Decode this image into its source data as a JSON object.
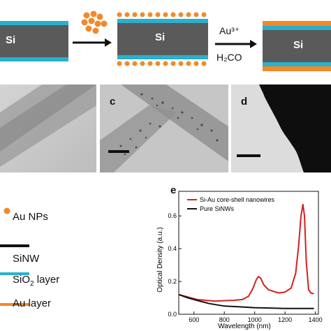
{
  "schematic": {
    "step1_label": "Si",
    "step2_label": "Si",
    "step3_label": "Si",
    "reagent_top": "Au³⁺",
    "reagent_bottom": "H₂CO",
    "colors": {
      "si": "#5a5a5a",
      "sio2": "#2ab0cf",
      "au": "#f08a2a",
      "np": "#f08a2a"
    }
  },
  "tem": {
    "panel_c_letter": "c",
    "panel_d_letter": "d"
  },
  "legend": {
    "au_nps": "Au NPs",
    "sinw": "SiNW",
    "sio2_prefix": "SiO",
    "sio2_sub": "2",
    "sio2_suffix": " layer",
    "au_layer": "Au layer"
  },
  "chart_data": {
    "type": "line",
    "panel_letter": "e",
    "xlabel": "Wavelength (nm)",
    "ylabel": "Optical Density (a.u.)",
    "xlim": [
      500,
      1420
    ],
    "ylim": [
      0,
      0.75
    ],
    "xticks": [
      600,
      800,
      1000,
      1200,
      1400
    ],
    "yticks": [
      0.0,
      0.2,
      0.4,
      0.6
    ],
    "legend_position": "top-left",
    "series": [
      {
        "name": "Si-Au core-shell nanowires",
        "color": "#d42020",
        "x": [
          500,
          560,
          620,
          680,
          740,
          800,
          860,
          920,
          960,
          990,
          1010,
          1025,
          1040,
          1060,
          1090,
          1120,
          1160,
          1200,
          1240,
          1270,
          1290,
          1305,
          1318,
          1328,
          1340,
          1355,
          1370,
          1390
        ],
        "y": [
          0.12,
          0.105,
          0.09,
          0.085,
          0.08,
          0.083,
          0.085,
          0.09,
          0.11,
          0.16,
          0.21,
          0.23,
          0.22,
          0.18,
          0.15,
          0.14,
          0.13,
          0.135,
          0.16,
          0.25,
          0.42,
          0.6,
          0.67,
          0.6,
          0.32,
          0.15,
          0.13,
          0.125
        ]
      },
      {
        "name": "Pure SiNWs",
        "color": "#111111",
        "x": [
          500,
          560,
          620,
          700,
          800,
          900,
          1000,
          1100,
          1200,
          1300,
          1390
        ],
        "y": [
          0.12,
          0.1,
          0.085,
          0.065,
          0.05,
          0.045,
          0.04,
          0.038,
          0.035,
          0.035,
          0.035
        ]
      }
    ]
  }
}
